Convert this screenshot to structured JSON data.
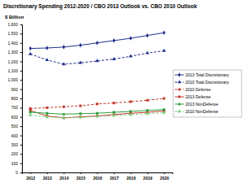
{
  "chart_data": {
    "type": "line",
    "title": "Discretionary Spending 2012-2020 / CBO 2013 Outlook vs. CBO 2010 Outlook",
    "y_label": "$ Billion",
    "categories": [
      "2012",
      "2013",
      "2014",
      "2015",
      "2016",
      "2017",
      "2018",
      "2019",
      "2020"
    ],
    "ylim": [
      0,
      1600
    ],
    "yticks": [
      0,
      100,
      200,
      300,
      400,
      500,
      600,
      700,
      800,
      900,
      {
        "value": 1000,
        "label": "1,000"
      },
      {
        "value": 1100,
        "label": "1,100"
      },
      {
        "value": 1200,
        "label": "1,200"
      },
      {
        "value": 1300,
        "label": "1,300"
      },
      {
        "value": 1400,
        "label": "1,400"
      },
      {
        "value": 1500,
        "label": "1,500"
      },
      {
        "value": 1600,
        "label": "1,600"
      }
    ],
    "grid": false,
    "legend": "right",
    "series": [
      {
        "name": "2013 Total Discretionary",
        "color": "#1f2f8c",
        "marker": "diamond",
        "line_style": "solid",
        "values": [
          1340,
          1345,
          1355,
          1375,
          1400,
          1425,
          1450,
          1480,
          1510
        ]
      },
      {
        "name": "2010 Total Discretionary",
        "color": "#1f2f8c",
        "marker": "triangle",
        "line_style": "dashed",
        "values": [
          1280,
          1215,
          1170,
          1185,
          1205,
          1225,
          1255,
          1290,
          1315
        ]
      },
      {
        "name": "2010 Defense",
        "color": "#c0392b",
        "marker": "square",
        "line_style": "dashed",
        "values": [
          690,
          700,
          710,
          720,
          740,
          750,
          765,
          780,
          800
        ]
      },
      {
        "name": "2013 Defense",
        "color": "#c0392b",
        "marker": "square",
        "line_style": "solid",
        "values": [
          670,
          610,
          590,
          600,
          610,
          625,
          640,
          650,
          665
        ]
      },
      {
        "name": "2013 NonDefense",
        "color": "#2e9e3e",
        "marker": "circle",
        "line_style": "solid",
        "values": [
          650,
          640,
          630,
          635,
          640,
          650,
          660,
          670,
          680
        ]
      },
      {
        "name": "2010 NonDefense",
        "color": "#7fcf7f",
        "marker": "cross",
        "line_style": "dashed",
        "values": [
          620,
          600,
          590,
          595,
          605,
          615,
          625,
          635,
          645
        ]
      }
    ]
  }
}
